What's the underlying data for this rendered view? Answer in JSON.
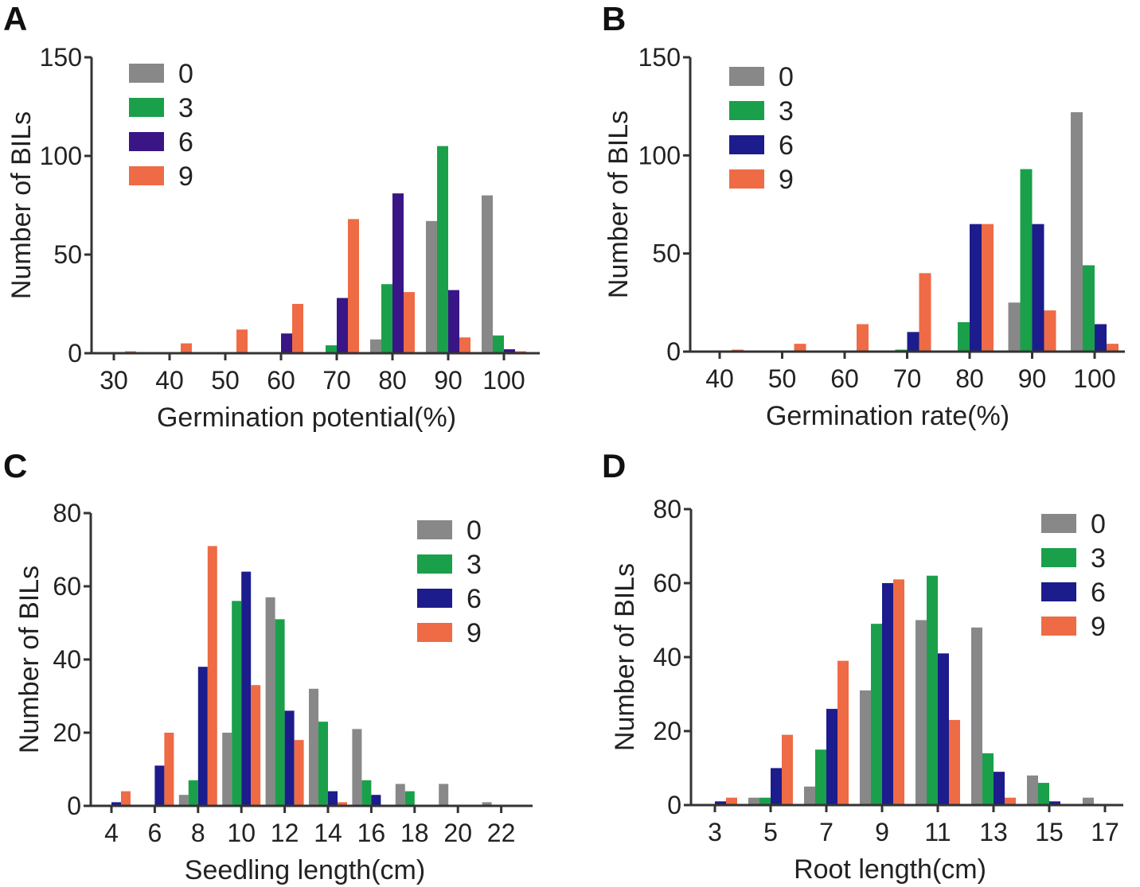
{
  "chart_data": [
    {
      "panel": "A",
      "type": "bar",
      "xlabel": "Germination potential(%)",
      "ylabel": "Number of BILs",
      "ylim": [
        0,
        150
      ],
      "yticks": [
        0,
        50,
        100,
        150
      ],
      "categories": [
        "30",
        "40",
        "50",
        "60",
        "70",
        "80",
        "90",
        "100"
      ],
      "legend_position": "top-left",
      "series": [
        {
          "name": "0",
          "color": "#888888",
          "values": [
            0,
            0,
            0,
            0,
            0,
            7,
            67,
            80
          ]
        },
        {
          "name": "3",
          "color": "#1aa04a",
          "values": [
            0,
            0,
            0,
            0,
            4,
            35,
            105,
            9
          ]
        },
        {
          "name": "6",
          "color": "#3a1585",
          "values": [
            0,
            0,
            0,
            10,
            28,
            81,
            32,
            2
          ]
        },
        {
          "name": "9",
          "color": "#ee6b45",
          "values": [
            1,
            5,
            12,
            25,
            68,
            31,
            8,
            1
          ]
        }
      ]
    },
    {
      "panel": "B",
      "type": "bar",
      "xlabel": "Germination rate(%)",
      "ylabel": "Number of BILs",
      "ylim": [
        0,
        150
      ],
      "yticks": [
        0,
        50,
        100,
        150
      ],
      "categories": [
        "40",
        "50",
        "60",
        "70",
        "80",
        "90",
        "100"
      ],
      "legend_position": "top-left",
      "series": [
        {
          "name": "0",
          "color": "#888888",
          "values": [
            0,
            0,
            0,
            0,
            0,
            25,
            122
          ]
        },
        {
          "name": "3",
          "color": "#1aa04a",
          "values": [
            0,
            0,
            0,
            1,
            15,
            93,
            44
          ]
        },
        {
          "name": "6",
          "color": "#1c1c8c",
          "values": [
            0,
            0,
            0,
            10,
            65,
            65,
            14
          ]
        },
        {
          "name": "9",
          "color": "#ee6b45",
          "values": [
            1,
            4,
            14,
            40,
            65,
            21,
            4
          ]
        }
      ]
    },
    {
      "panel": "C",
      "type": "bar",
      "xlabel": "Seedling length(cm)",
      "ylabel": "Number of BILs",
      "ylim": [
        0,
        80
      ],
      "yticks": [
        0,
        20,
        40,
        60,
        80
      ],
      "categories": [
        "4",
        "6",
        "8",
        "10",
        "12",
        "14",
        "16",
        "18",
        "20",
        "22"
      ],
      "legend_position": "top-right",
      "series": [
        {
          "name": "0",
          "color": "#888888",
          "values": [
            0,
            0,
            3,
            20,
            57,
            32,
            21,
            6,
            6,
            1
          ]
        },
        {
          "name": "3",
          "color": "#1aa04a",
          "values": [
            0,
            0,
            7,
            56,
            51,
            23,
            7,
            4,
            0,
            0
          ]
        },
        {
          "name": "6",
          "color": "#1c1c8c",
          "values": [
            1,
            11,
            38,
            64,
            26,
            4,
            3,
            0,
            0,
            0
          ]
        },
        {
          "name": "9",
          "color": "#ee6b45",
          "values": [
            4,
            20,
            71,
            33,
            18,
            1,
            0,
            0,
            0,
            0
          ]
        }
      ]
    },
    {
      "panel": "D",
      "type": "bar",
      "xlabel": "Root length(cm)",
      "ylabel": "Number of BILs",
      "ylim": [
        0,
        80
      ],
      "yticks": [
        0,
        20,
        40,
        60,
        80
      ],
      "categories": [
        "3",
        "5",
        "7",
        "9",
        "11",
        "13",
        "15",
        "17"
      ],
      "legend_position": "top-right",
      "series": [
        {
          "name": "0",
          "color": "#888888",
          "values": [
            0,
            2,
            5,
            31,
            50,
            48,
            8,
            2
          ]
        },
        {
          "name": "3",
          "color": "#1aa04a",
          "values": [
            0,
            2,
            15,
            49,
            62,
            14,
            6,
            0
          ]
        },
        {
          "name": "6",
          "color": "#1c1c8c",
          "values": [
            1,
            10,
            26,
            60,
            41,
            9,
            1,
            0
          ]
        },
        {
          "name": "9",
          "color": "#ee6b45",
          "values": [
            2,
            19,
            39,
            61,
            23,
            2,
            0,
            0
          ]
        }
      ]
    }
  ]
}
